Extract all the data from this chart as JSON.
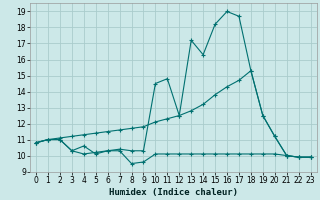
{
  "xlabel": "Humidex (Indice chaleur)",
  "background_color": "#cce8e8",
  "grid_color": "#aacccc",
  "line_color": "#007070",
  "xlim": [
    -0.5,
    23.5
  ],
  "ylim": [
    9,
    19.5
  ],
  "yticks": [
    9,
    10,
    11,
    12,
    13,
    14,
    15,
    16,
    17,
    18,
    19
  ],
  "xticks": [
    0,
    1,
    2,
    3,
    4,
    5,
    6,
    7,
    8,
    9,
    10,
    11,
    12,
    13,
    14,
    15,
    16,
    17,
    18,
    19,
    20,
    21,
    22,
    23
  ],
  "series_max": {
    "x": [
      0,
      1,
      2,
      3,
      4,
      5,
      6,
      7,
      8,
      9,
      10,
      11,
      12,
      13,
      14,
      15,
      16,
      17,
      18,
      19,
      20,
      21,
      22,
      23
    ],
    "y": [
      10.8,
      11.0,
      11.0,
      10.3,
      10.6,
      10.1,
      10.3,
      10.4,
      10.3,
      10.3,
      14.5,
      14.8,
      12.5,
      17.2,
      16.3,
      18.2,
      19.0,
      18.7,
      15.3,
      12.5,
      11.2,
      10.0,
      9.9,
      9.9
    ]
  },
  "series_mean": {
    "x": [
      0,
      1,
      2,
      3,
      4,
      5,
      6,
      7,
      8,
      9,
      10,
      11,
      12,
      13,
      14,
      15,
      16,
      17,
      18,
      19,
      20,
      21,
      22,
      23
    ],
    "y": [
      10.8,
      11.0,
      11.1,
      11.2,
      11.3,
      11.4,
      11.5,
      11.6,
      11.7,
      11.8,
      12.1,
      12.3,
      12.5,
      12.8,
      13.2,
      13.8,
      14.3,
      14.7,
      15.3,
      12.5,
      11.2,
      10.0,
      9.9,
      9.9
    ]
  },
  "series_min": {
    "x": [
      0,
      1,
      2,
      3,
      4,
      5,
      6,
      7,
      8,
      9,
      10,
      11,
      12,
      13,
      14,
      15,
      16,
      17,
      18,
      19,
      20,
      21,
      22,
      23
    ],
    "y": [
      10.8,
      11.0,
      11.0,
      10.3,
      10.1,
      10.2,
      10.3,
      10.3,
      9.5,
      9.6,
      10.1,
      10.1,
      10.1,
      10.1,
      10.1,
      10.1,
      10.1,
      10.1,
      10.1,
      10.1,
      10.1,
      10.0,
      9.9,
      9.9
    ]
  }
}
